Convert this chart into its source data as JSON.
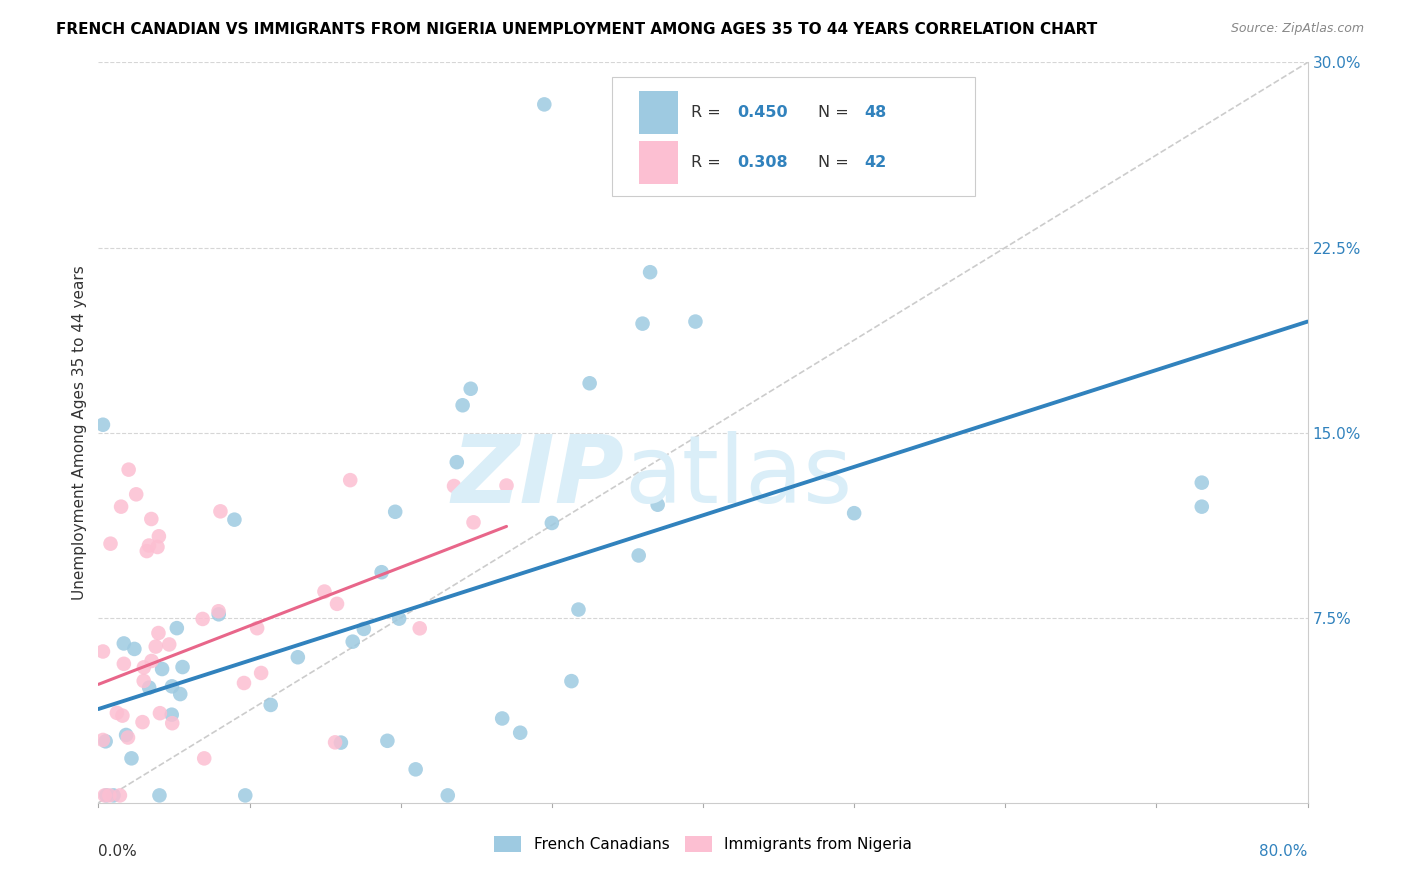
{
  "title": "FRENCH CANADIAN VS IMMIGRANTS FROM NIGERIA UNEMPLOYMENT AMONG AGES 35 TO 44 YEARS CORRELATION CHART",
  "source": "Source: ZipAtlas.com",
  "ylabel": "Unemployment Among Ages 35 to 44 years",
  "xlim": [
    0.0,
    0.8
  ],
  "ylim": [
    0.0,
    0.3
  ],
  "legend_r1": "0.450",
  "legend_n1": "48",
  "legend_r2": "0.308",
  "legend_n2": "42",
  "legend_label1": "French Canadians",
  "legend_label2": "Immigrants from Nigeria",
  "color_blue": "#9ecae1",
  "color_pink": "#fcbfd2",
  "color_blue_line": "#3182bd",
  "color_pink_line": "#e8668a",
  "color_diag": "#cccccc",
  "watermark_zip": "ZIP",
  "watermark_atlas": "atlas",
  "blue_line_x": [
    0.0,
    0.8
  ],
  "blue_line_y": [
    0.038,
    0.195
  ],
  "pink_line_x": [
    0.0,
    0.27
  ],
  "pink_line_y": [
    0.048,
    0.112
  ],
  "diag_line_x": [
    0.0,
    0.8
  ],
  "diag_line_y": [
    0.0,
    0.3
  ]
}
